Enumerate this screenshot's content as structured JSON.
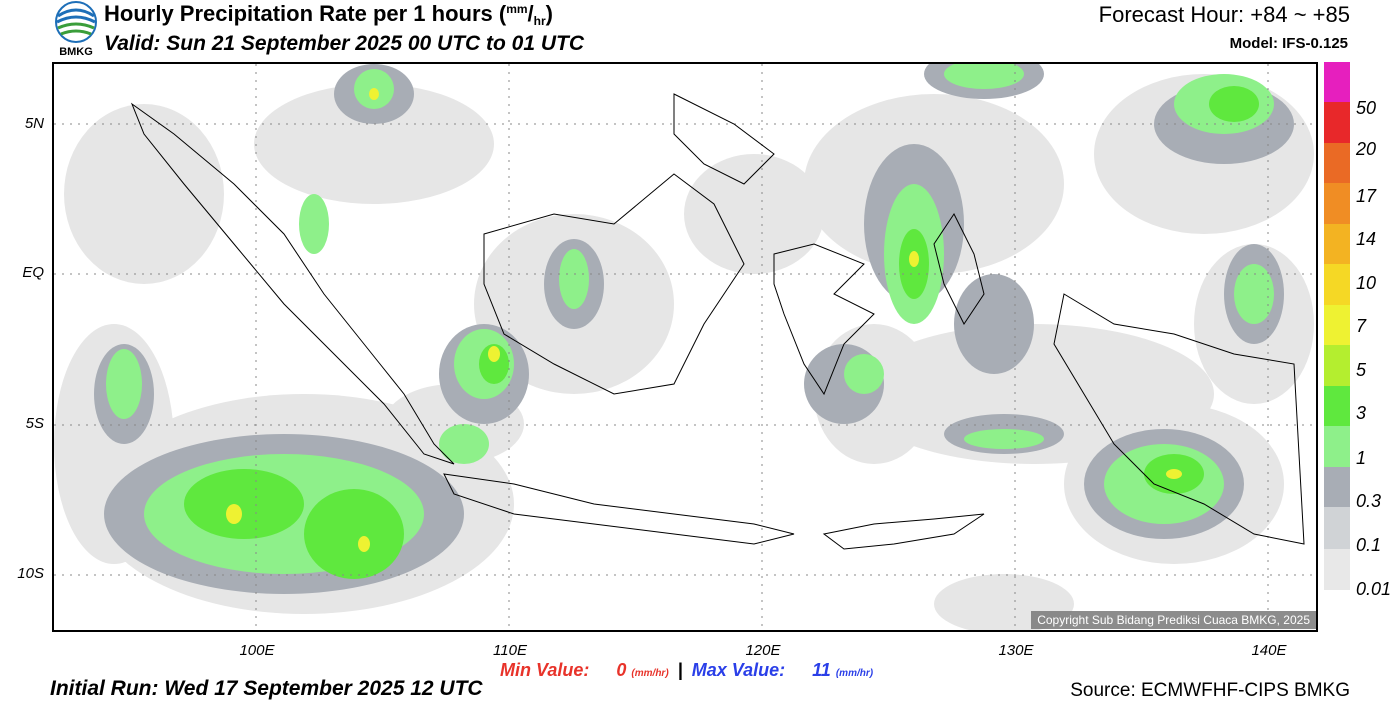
{
  "header": {
    "title": "Hourly Precipitation Rate per 1 hours",
    "title_unit_mm": "mm",
    "title_unit_hr": "hr",
    "valid": "Valid: Sun 21 September 2025 00 UTC to 01 UTC",
    "forecast_hour": "Forecast Hour: +84 ~ +85",
    "model": "Model: IFS-0.125",
    "logo_text": "BMKG"
  },
  "map": {
    "y_labels": [
      "5N",
      "EQ",
      "5S",
      "10S"
    ],
    "x_labels": [
      "100E",
      "110E",
      "120E",
      "130E",
      "140E"
    ],
    "copyright": "Copyright Sub Bidang Prediksi Cuaca BMKG, 2025",
    "lat_range": [
      -12,
      7
    ],
    "lon_range": [
      92,
      142
    ]
  },
  "legend": {
    "labels": [
      "50",
      "20",
      "17",
      "14",
      "10",
      "7",
      "5",
      "3",
      "1",
      "0.3",
      "0.1",
      "0.01"
    ],
    "colors": [
      "#e61fbe",
      "#e8282a",
      "#ea6a25",
      "#f08d24",
      "#f3b322",
      "#f5d825",
      "#eef232",
      "#b4ee2f",
      "#5fe83e",
      "#8ef08a",
      "#a8adb5",
      "#d0d3d6",
      "#e8e8e8"
    ]
  },
  "footer": {
    "min_label": "Min Value:",
    "min_value": "0",
    "separator": "|",
    "max_label": "Max Value:",
    "max_value": "11",
    "unit_mm": "mm",
    "unit_hr": "hr",
    "initial_run": "Initial Run: Wed 17 September 2025 12 UTC",
    "source": "Source: ECMWFHF-CIPS BMKG"
  }
}
